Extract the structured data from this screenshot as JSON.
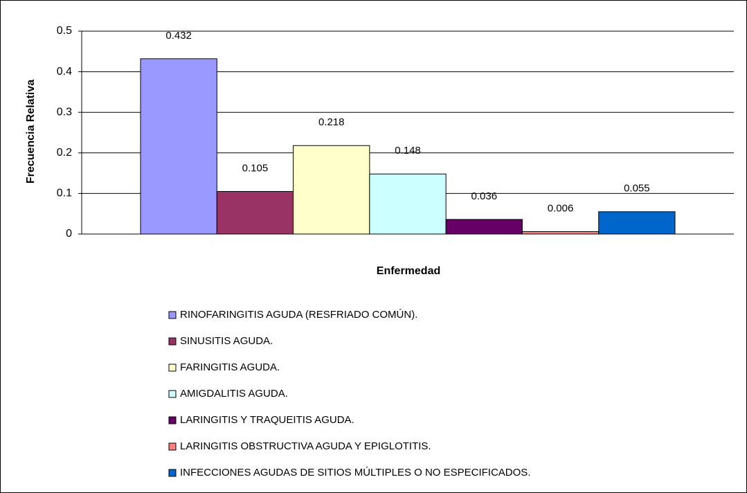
{
  "chart_data": {
    "type": "bar",
    "xlabel": "Enfermedad",
    "ylabel": "Frecuencia Relativa",
    "ylim": [
      0,
      0.5
    ],
    "yticks": [
      0,
      0.1,
      0.2,
      0.3,
      0.4,
      0.5
    ],
    "grid": true,
    "legend": "bottom",
    "series": [
      {
        "name": "RINOFARINGITIS AGUDA (RESFRIADO COMÚN).",
        "color": "#9999ff",
        "values": [
          0.432
        ]
      },
      {
        "name": "SINUSITIS AGUDA.",
        "color": "#993366",
        "values": [
          0.105
        ]
      },
      {
        "name": "FARINGITIS AGUDA.",
        "color": "#ffffcc",
        "values": [
          0.218
        ]
      },
      {
        "name": "AMIGDALITIS AGUDA.",
        "color": "#ccffff",
        "values": [
          0.148
        ]
      },
      {
        "name": "LARINGITIS Y TRAQUEITIS AGUDA.",
        "color": "#660066",
        "values": [
          0.036
        ]
      },
      {
        "name": "LARINGITIS OBSTRUCTIVA AGUDA Y EPIGLOTITIS.",
        "color": "#ff8080",
        "values": [
          0.006
        ]
      },
      {
        "name": "INFECCIONES AGUDAS DE SITIOS MÚLTIPLES O NO ESPECIFICADOS.",
        "color": "#0066cc",
        "values": [
          0.055
        ]
      }
    ]
  }
}
